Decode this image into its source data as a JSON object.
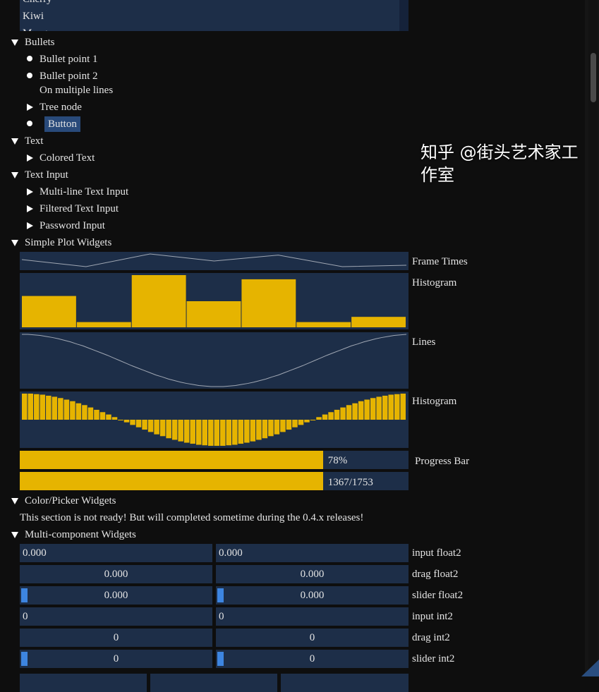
{
  "listbox": {
    "items": [
      "Cherry",
      "Kiwi",
      "Mango"
    ]
  },
  "sections": {
    "bullets": {
      "title": "Bullets",
      "items": [
        "Bullet point 1",
        "Bullet point 2"
      ],
      "multiline": "On multiple lines",
      "tree_node": "Tree node",
      "button": "Button"
    },
    "text": {
      "title": "Text",
      "colored": "Colored Text"
    },
    "text_input": {
      "title": "Text Input",
      "items": [
        "Multi-line Text Input",
        "Filtered Text Input",
        "Password Input"
      ]
    },
    "plots": {
      "title": "Simple Plot Widgets"
    },
    "color": {
      "title": "Color/Picker Widgets",
      "note": "This section is not ready! But will completed sometime during the 0.4.x releases!"
    },
    "multi": {
      "title": "Multi-component Widgets"
    }
  },
  "colors": {
    "plot_bg": "#1d2e48",
    "plot_fill": "#e6b400",
    "line": "#a0a7b3",
    "accent": "#3d85e0",
    "button_bg": "#294a7a"
  },
  "chart_data": [
    {
      "type": "line",
      "label": "Frame Times",
      "values": [
        0.6,
        0.1,
        1.0,
        0.5,
        0.92,
        0.1,
        0.2
      ],
      "ylim": [
        0,
        1
      ]
    },
    {
      "type": "bar",
      "label": "Histogram",
      "values": [
        0.6,
        0.1,
        1.0,
        0.5,
        0.92,
        0.1,
        0.2
      ],
      "ylim": [
        0,
        1
      ]
    },
    {
      "type": "line",
      "label": "Lines",
      "values": [
        1.0,
        1.0,
        0.98,
        0.96,
        0.92,
        0.88,
        0.83,
        0.77,
        0.71,
        0.63,
        0.56,
        0.47,
        0.38,
        0.29,
        0.2,
        0.1,
        0.0,
        -0.1,
        -0.2,
        -0.29,
        -0.38,
        -0.47,
        -0.56,
        -0.63,
        -0.71,
        -0.77,
        -0.83,
        -0.88,
        -0.92,
        -0.96,
        -0.98,
        -1.0,
        -1.0,
        -1.0,
        -0.98,
        -0.96,
        -0.92,
        -0.88,
        -0.83,
        -0.77,
        -0.71,
        -0.63,
        -0.56,
        -0.47,
        -0.38,
        -0.29,
        -0.2,
        -0.1,
        0.0,
        0.1,
        0.2,
        0.29,
        0.38,
        0.47,
        0.56,
        0.63,
        0.71,
        0.77,
        0.83,
        0.88,
        0.92,
        0.96,
        0.98,
        1.0
      ],
      "ylim": [
        -1,
        1
      ]
    },
    {
      "type": "bar",
      "label": "Histogram",
      "values": [
        1.0,
        1.0,
        0.98,
        0.96,
        0.92,
        0.88,
        0.83,
        0.77,
        0.71,
        0.63,
        0.56,
        0.47,
        0.38,
        0.29,
        0.2,
        0.1,
        0.0,
        -0.1,
        -0.2,
        -0.29,
        -0.38,
        -0.47,
        -0.56,
        -0.63,
        -0.71,
        -0.77,
        -0.83,
        -0.88,
        -0.92,
        -0.96,
        -0.98,
        -1.0,
        -1.0,
        -1.0,
        -0.98,
        -0.96,
        -0.92,
        -0.88,
        -0.83,
        -0.77,
        -0.71,
        -0.63,
        -0.56,
        -0.47,
        -0.38,
        -0.29,
        -0.2,
        -0.1,
        0.0,
        0.1,
        0.2,
        0.29,
        0.38,
        0.47,
        0.56,
        0.63,
        0.71,
        0.77,
        0.83,
        0.88,
        0.92,
        0.96,
        0.98,
        1.0
      ],
      "ylim": [
        -1,
        1
      ]
    }
  ],
  "progress": {
    "label": "Progress Bar",
    "fraction": 0.78,
    "text1": "78%",
    "text2": "1367/1753"
  },
  "multi_rows": [
    {
      "label": "input float2",
      "values": [
        "0.000",
        "0.000"
      ],
      "kind": "input"
    },
    {
      "label": "drag float2",
      "values": [
        "0.000",
        "0.000"
      ],
      "kind": "drag"
    },
    {
      "label": "slider float2",
      "values": [
        "0.000",
        "0.000"
      ],
      "kind": "slider"
    },
    {
      "label": "input int2",
      "values": [
        "0",
        "0"
      ],
      "kind": "input"
    },
    {
      "label": "drag int2",
      "values": [
        "0",
        "0"
      ],
      "kind": "drag"
    },
    {
      "label": "slider int2",
      "values": [
        "0",
        "0"
      ],
      "kind": "slider"
    }
  ],
  "watermark": "知乎 @街头艺术家工作室"
}
